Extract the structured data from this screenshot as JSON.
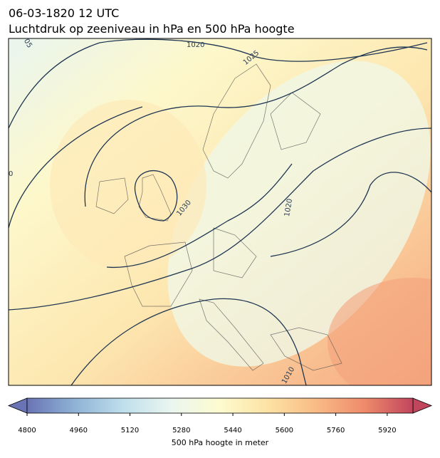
{
  "header": {
    "title": "06-03-1820 12 UTC",
    "subtitle": "Luchtdruk op zeeniveau in hPa en 500 hPa hoogte"
  },
  "map": {
    "contour_labels": [
      "1020",
      "1025",
      "1030",
      "1020",
      "1010",
      "05",
      "0"
    ]
  },
  "colorbar": {
    "label": "500 hPa hoogte in meter",
    "xlim": [
      4800,
      6000
    ],
    "xticks": [
      4800,
      4960,
      5120,
      5280,
      5440,
      5600,
      5760,
      5920
    ],
    "colors": [
      "#6a74b5",
      "#8fb3d6",
      "#bfdfec",
      "#eaf6ef",
      "#fdfbcf",
      "#fde2a4",
      "#f9bb86",
      "#ef8a6b",
      "#c0455d"
    ]
  }
}
